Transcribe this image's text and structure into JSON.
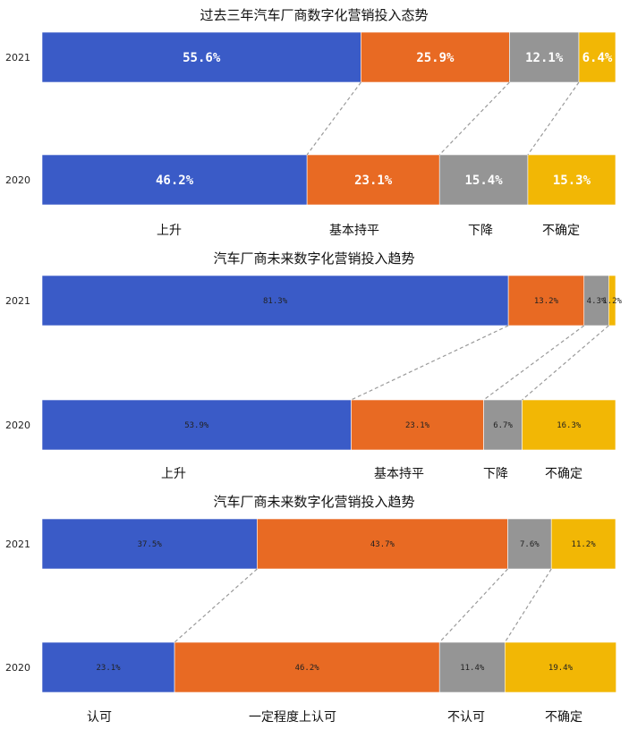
{
  "chart_data": [
    {
      "type": "bar",
      "stacked": true,
      "orientation": "horizontal",
      "title": "过去三年汽车厂商数字化营销投入态势",
      "categories": [
        "2021",
        "2020"
      ],
      "series": [
        {
          "name": "上升",
          "color": "#3A5BC7",
          "values": [
            55.6,
            46.2
          ],
          "labels": [
            "55.6%",
            "46.2%"
          ]
        },
        {
          "name": "基本持平",
          "color": "#E86A23",
          "values": [
            25.9,
            23.1
          ],
          "labels": [
            "25.9%",
            "23.1%"
          ]
        },
        {
          "name": "下降",
          "color": "#959595",
          "values": [
            12.1,
            15.4
          ],
          "labels": [
            "12.1%",
            "15.4%"
          ]
        },
        {
          "name": "不确定",
          "color": "#F2B705",
          "values": [
            6.4,
            15.3
          ],
          "labels": [
            "6.4%",
            "15.3%"
          ]
        }
      ],
      "xlim": [
        0,
        100
      ]
    },
    {
      "type": "bar",
      "stacked": true,
      "orientation": "horizontal",
      "title": "汽车厂商未来数字化营销投入趋势",
      "categories": [
        "2021",
        "2020"
      ],
      "series": [
        {
          "name": "上升",
          "color": "#3A5BC7",
          "values": [
            81.3,
            53.9
          ],
          "labels": [
            "81.3%",
            "53.9%"
          ]
        },
        {
          "name": "基本持平",
          "color": "#E86A23",
          "values": [
            13.2,
            23.1
          ],
          "labels": [
            "13.2%",
            "23.1%"
          ]
        },
        {
          "name": "下降",
          "color": "#959595",
          "values": [
            4.3,
            6.7
          ],
          "labels": [
            "4.3%",
            "6.7%"
          ]
        },
        {
          "name": "不确定",
          "color": "#F2B705",
          "values": [
            1.2,
            16.3
          ],
          "labels": [
            "1.2%",
            "16.3%"
          ]
        }
      ],
      "xlim": [
        0,
        100
      ]
    },
    {
      "type": "bar",
      "stacked": true,
      "orientation": "horizontal",
      "title": "汽车厂商未来数字化营销投入趋势",
      "categories": [
        "2021",
        "2020"
      ],
      "series": [
        {
          "name": "认可",
          "color": "#3A5BC7",
          "values": [
            37.5,
            23.1
          ],
          "labels": [
            "37.5%",
            "23.1%"
          ]
        },
        {
          "name": "一定程度上认可",
          "color": "#E86A23",
          "values": [
            43.7,
            46.2
          ],
          "labels": [
            "43.7%",
            "46.2%"
          ]
        },
        {
          "name": "不认可",
          "color": "#959595",
          "values": [
            7.6,
            11.4
          ],
          "labels": [
            "7.6%",
            "11.4%"
          ]
        },
        {
          "name": "不确定",
          "color": "#F2B705",
          "values": [
            11.2,
            19.4
          ],
          "labels": [
            "11.2%",
            "19.4%"
          ]
        }
      ],
      "xlim": [
        0,
        100
      ]
    }
  ]
}
